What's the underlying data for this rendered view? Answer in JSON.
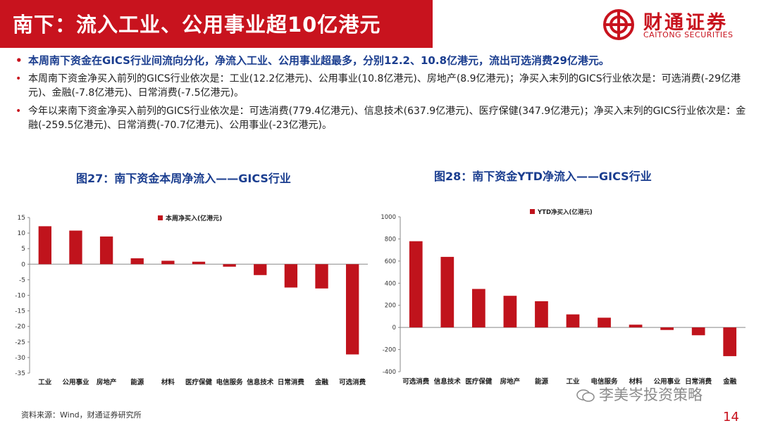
{
  "header": {
    "title": "南下：流入工业、公用事业超10亿港元",
    "logo_cn": "财通证券",
    "logo_en": "CAITONG SECURITIES"
  },
  "bullets": [
    "本周南下资金在GICS行业间流向分化，净流入工业、公用事业超最多，分别12.2、10.8亿港元，流出可选消费29亿港元。",
    "本周南下资金净买入前列的GICS行业依次是：工业(12.2亿港元)、公用事业(10.8亿港元)、房地产(8.9亿港元)；净买入末列的GICS行业依次是：可选消费(-29亿港元)、金融(-7.8亿港元)、日常消费(-7.5亿港元)。",
    "今年以来南下资金净买入前列的GICS行业依次是：可选消费(779.4亿港元)、信息技术(637.9亿港元)、医疗保健(347.9亿港元)；净买入末列的GICS行业依次是：金融(-259.5亿港元)、日常消费(-70.7亿港元)、公用事业(-23亿港元)。"
  ],
  "chart_titles": {
    "left": "图27：南下资金本周净流入——GICS行业",
    "right": "图28：南下资金YTD净流入——GICS行业"
  },
  "chart_data": [
    {
      "type": "bar",
      "legend": "本周净买入(亿港元)",
      "legend_position": "top-left",
      "categories": [
        "工业",
        "公用事业",
        "房地产",
        "能源",
        "材料",
        "医疗保健",
        "电信服务",
        "信息技术",
        "日常消费",
        "金融",
        "可选消费"
      ],
      "values": [
        12.2,
        10.8,
        8.9,
        1.9,
        1.1,
        0.8,
        -0.8,
        -3.5,
        -7.5,
        -7.8,
        -29
      ],
      "ylim": [
        -35,
        15
      ],
      "yticks": [
        15,
        10,
        5,
        0,
        -5,
        -10,
        -15,
        -20,
        -25,
        -30,
        -35
      ],
      "grid": false,
      "color": "#c0131c"
    },
    {
      "type": "bar",
      "legend": "YTD净买入(亿港元)",
      "legend_position": "top-left",
      "categories": [
        "可选消费",
        "信息技术",
        "医疗保健",
        "房地产",
        "能源",
        "工业",
        "电信服务",
        "材料",
        "公用事业",
        "日常消费",
        "金融"
      ],
      "values": [
        779.4,
        637.9,
        347.9,
        286,
        237,
        118,
        88,
        25,
        -23,
        -70.7,
        -259.5
      ],
      "ylim": [
        -400,
        1000
      ],
      "yticks": [
        1000,
        800,
        600,
        400,
        200,
        0,
        -200,
        -400
      ],
      "grid": false,
      "color": "#c0131c"
    }
  ],
  "footer": {
    "source": "资料来源：Wind，财通证券研究所",
    "watermark": "李美岑投资策略",
    "page": "14"
  }
}
